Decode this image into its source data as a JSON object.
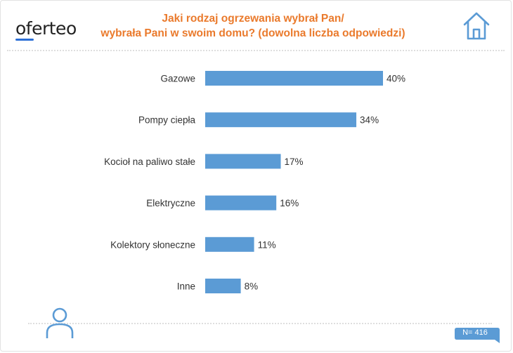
{
  "brand": {
    "logo_text": "oferteo",
    "accent_color": "#2b6fd6"
  },
  "title_line1": "Jaki rodzaj ogrzewania wybrał Pan/",
  "title_line2": "wybrała Pani w swoim domu? (dowolna liczba odpowiedzi)",
  "sample_label": "N= 416",
  "icons": {
    "top_right": "house-icon",
    "bottom_left": "person-icon"
  },
  "colors": {
    "bar": "#5b9bd5",
    "title": "#ea7a2c",
    "icon": "#5b9bd5"
  },
  "chart_data": {
    "type": "bar",
    "orientation": "horizontal",
    "categories": [
      "Gazowe",
      "Pompy ciepła",
      "Kocioł na paliwo stałe",
      "Elektryczne",
      "Kolektory słoneczne",
      "Inne"
    ],
    "values": [
      40,
      34,
      17,
      16,
      11,
      8
    ],
    "value_labels": [
      "40%",
      "34%",
      "17%",
      "16%",
      "11%",
      "8%"
    ],
    "unit": "%",
    "xlim": [
      0,
      40
    ],
    "grid": false,
    "legend": "none"
  }
}
